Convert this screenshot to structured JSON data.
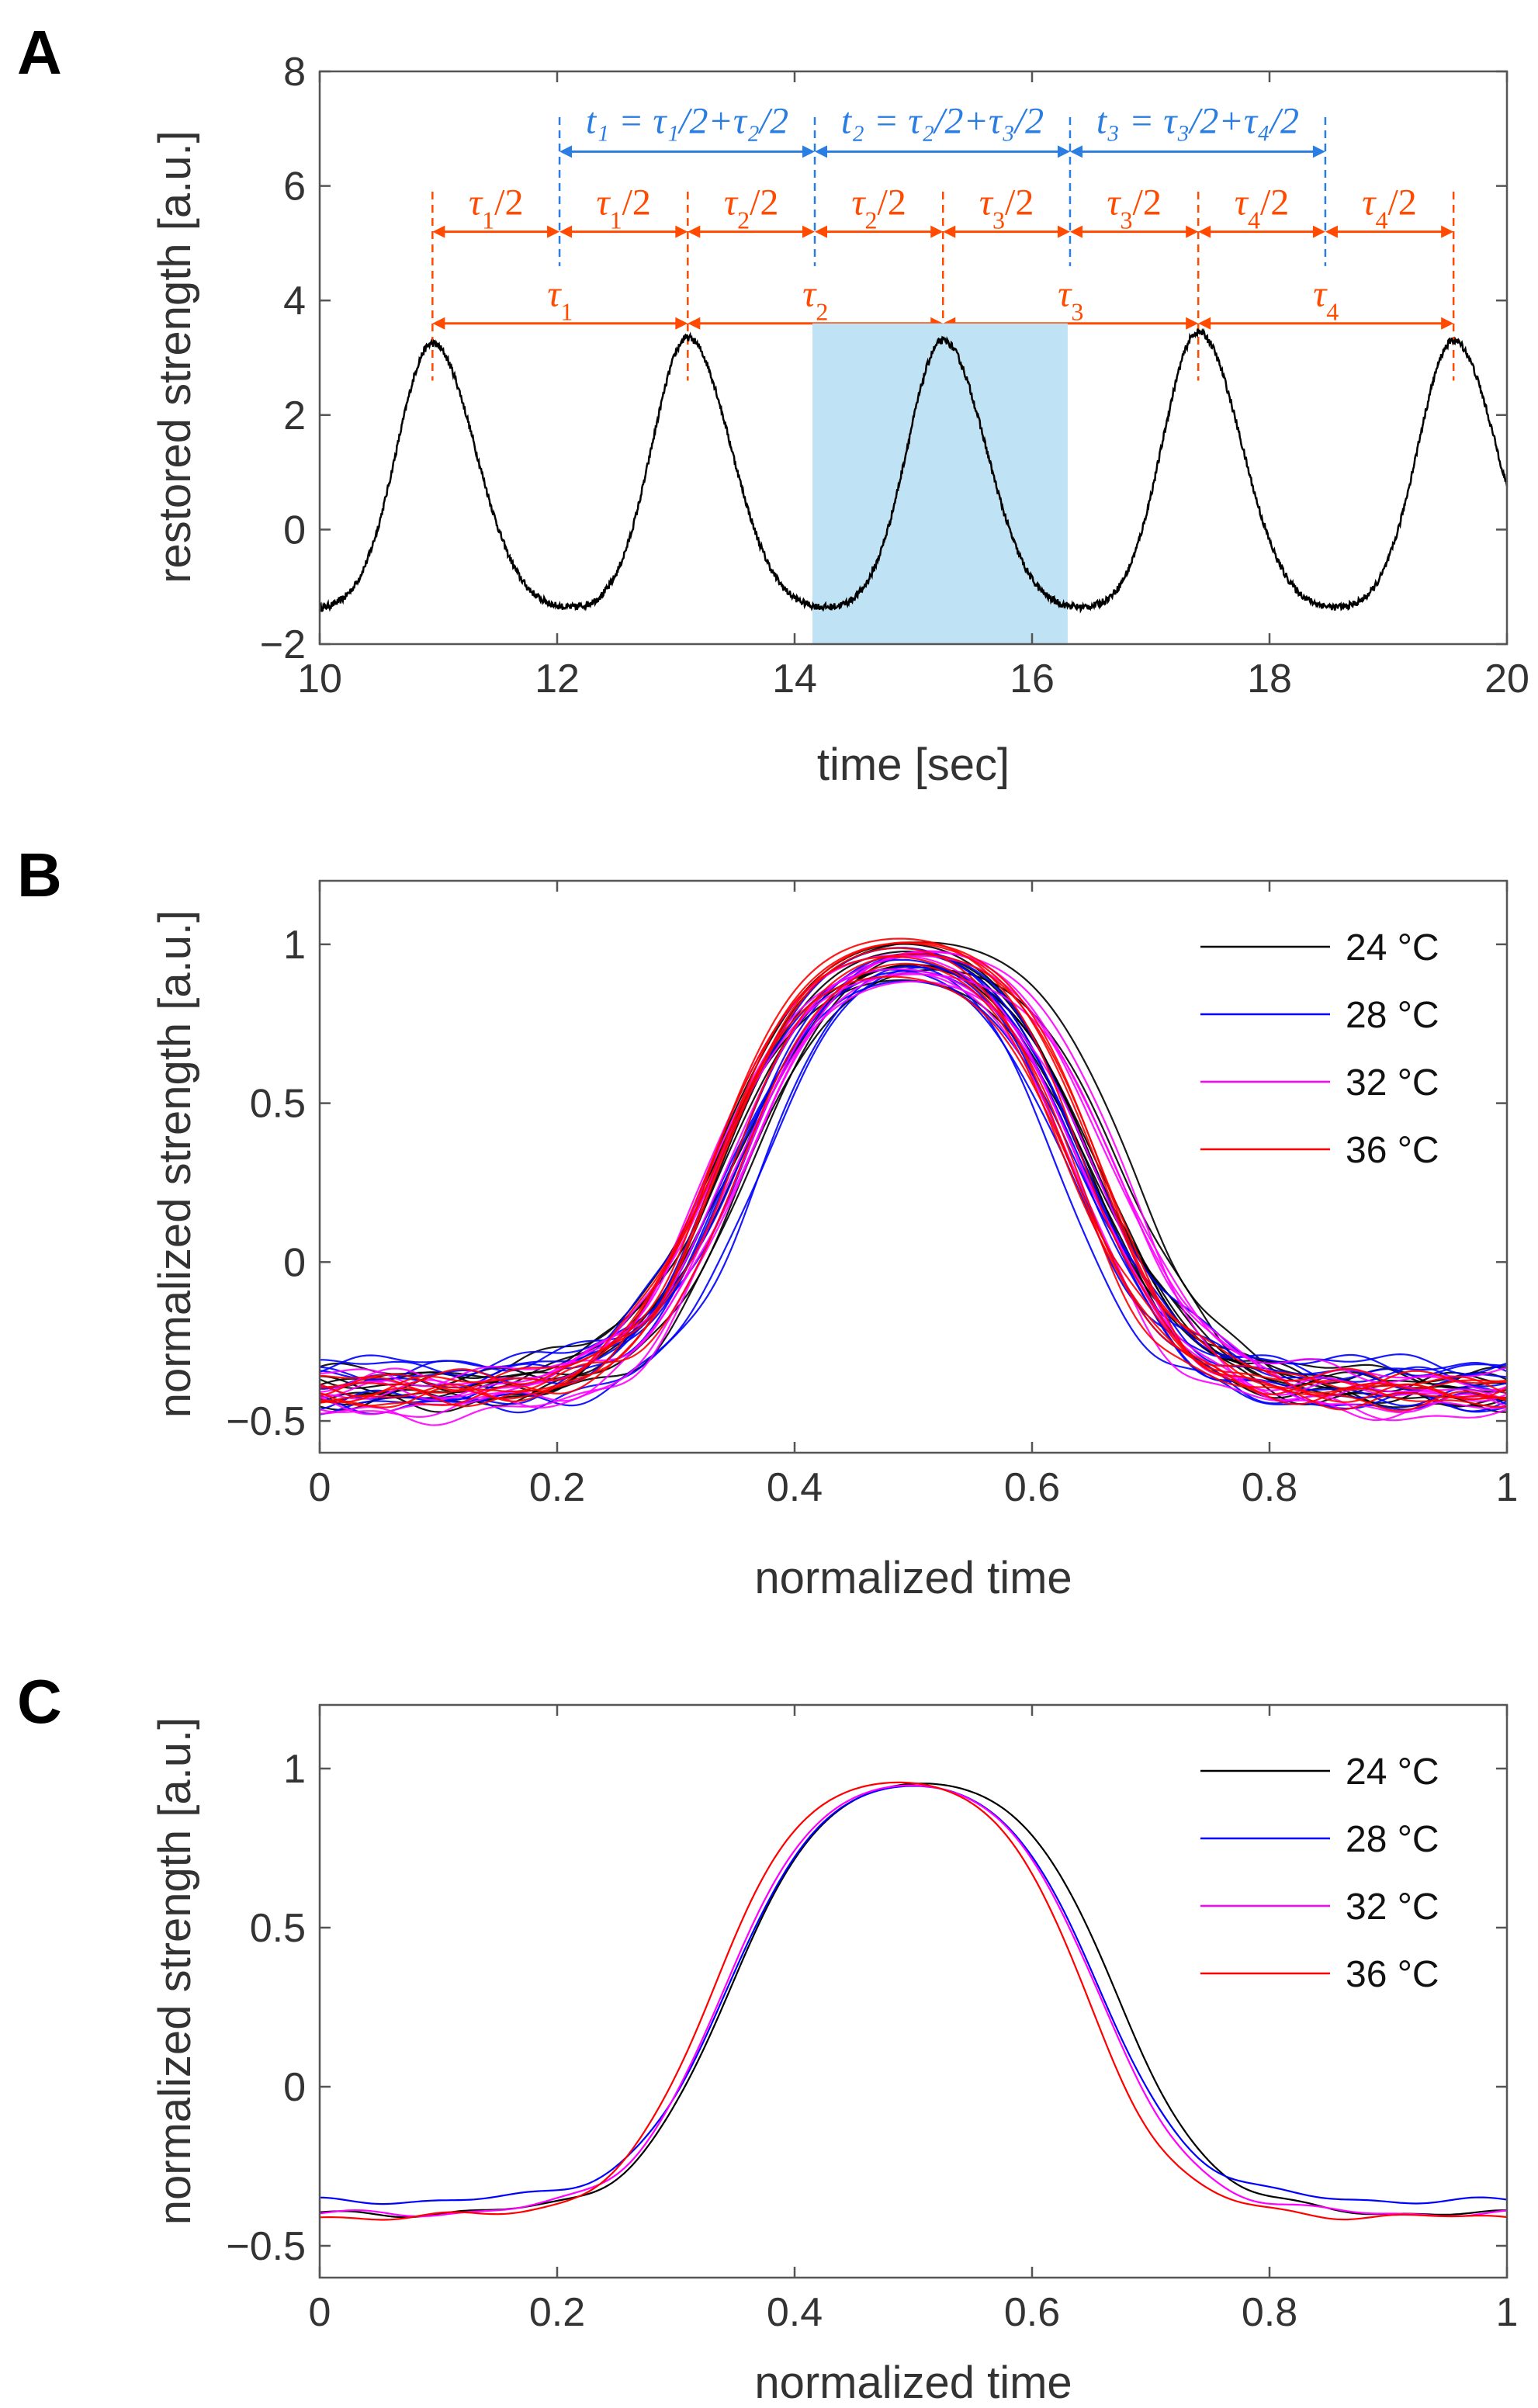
{
  "panel_labels": [
    "A",
    "B",
    "C"
  ],
  "colors": {
    "axis": "#555555",
    "signal": "#000000",
    "shade": "#bfe3f5",
    "orange": "#ff4a00",
    "blue": "#2a7de1",
    "series_24": "#000000",
    "series_28": "#0000ff",
    "series_32": "#ff00ff",
    "series_36": "#ff0000"
  },
  "chart_data": [
    {
      "panel": "A",
      "type": "line",
      "xlabel": "time [sec]",
      "ylabel": "restored strength [a.u.]",
      "xlim": [
        10,
        20
      ],
      "ylim": [
        -2,
        8
      ],
      "xticks": [
        10,
        12,
        14,
        16,
        18,
        20
      ],
      "yticks": [
        -2,
        0,
        2,
        4,
        6,
        8
      ],
      "baseline": -1.4,
      "peaks": [
        {
          "t": 10.95,
          "amp": 3.25
        },
        {
          "t": 13.1,
          "amp": 3.35
        },
        {
          "t": 15.25,
          "amp": 3.3
        },
        {
          "t": 17.4,
          "amp": 3.45
        },
        {
          "t": 19.55,
          "amp": 3.3
        }
      ],
      "shaded_region": {
        "x": [
          14.15,
          16.3
        ],
        "y": [
          -2,
          3.6
        ]
      },
      "tau_half_bars": {
        "y": 5.2,
        "marks": [
          10.95,
          12.02,
          13.1,
          14.17,
          15.25,
          16.32,
          17.4,
          18.47,
          19.55
        ],
        "labels": [
          {
            "sym": "τ",
            "sub": "1",
            "suffix": "/2"
          },
          {
            "sym": "τ",
            "sub": "1",
            "suffix": "/2"
          },
          {
            "sym": "τ",
            "sub": "2",
            "suffix": "/2"
          },
          {
            "sym": "τ",
            "sub": "2",
            "suffix": "/2"
          },
          {
            "sym": "τ",
            "sub": "3",
            "suffix": "/2"
          },
          {
            "sym": "τ",
            "sub": "3",
            "suffix": "/2"
          },
          {
            "sym": "τ",
            "sub": "4",
            "suffix": "/2"
          },
          {
            "sym": "τ",
            "sub": "4",
            "suffix": "/2"
          }
        ]
      },
      "tau_bars": {
        "y": 3.6,
        "marks": [
          10.95,
          13.1,
          15.25,
          17.4,
          19.55
        ],
        "labels": [
          {
            "sym": "τ",
            "sub": "1"
          },
          {
            "sym": "τ",
            "sub": "2"
          },
          {
            "sym": "τ",
            "sub": "3"
          },
          {
            "sym": "τ",
            "sub": "4"
          }
        ]
      },
      "t_bars": {
        "y": 6.6,
        "marks": [
          12.02,
          14.17,
          16.32,
          18.47
        ],
        "labels": [
          "t₁ = τ₁/2+τ₂/2",
          "t₂ = τ₂/2+τ₃/2",
          "t₃ = τ₃/2+τ₄/2"
        ]
      }
    },
    {
      "panel": "B",
      "type": "line",
      "xlabel": "normalized time",
      "ylabel": "normalized strength [a.u.]",
      "xlim": [
        0,
        1
      ],
      "ylim": [
        -0.6,
        1.2
      ],
      "xticks": [
        0,
        0.2,
        0.4,
        0.6,
        0.8,
        1
      ],
      "xtick_labels": [
        "0",
        "0.2",
        "0.4",
        "0.6",
        "0.8",
        "1"
      ],
      "yticks": [
        -0.5,
        0,
        0.5,
        1
      ],
      "ytick_labels": [
        "−0.5",
        "0",
        "0.5",
        "1"
      ],
      "legend": [
        "24 °C",
        "28 °C",
        "32 °C",
        "36 °C"
      ],
      "legend_position": "top-right",
      "series": [
        {
          "name": "24 °C",
          "traces": 9,
          "rise": 0.345,
          "fall": 0.665,
          "width": 0.042,
          "base": -0.4
        },
        {
          "name": "28 °C",
          "traces": 9,
          "rise": 0.355,
          "fall": 0.645,
          "width": 0.04,
          "base": -0.38
        },
        {
          "name": "32 °C",
          "traces": 8,
          "rise": 0.345,
          "fall": 0.655,
          "width": 0.04,
          "base": -0.42
        },
        {
          "name": "36 °C",
          "traces": 8,
          "rise": 0.335,
          "fall": 0.648,
          "width": 0.038,
          "base": -0.42
        }
      ]
    },
    {
      "panel": "C",
      "type": "line",
      "xlabel": "normalized time",
      "ylabel": "normalized strength [a.u.]",
      "xlim": [
        0,
        1
      ],
      "ylim": [
        -0.6,
        1.2
      ],
      "xticks": [
        0,
        0.2,
        0.4,
        0.6,
        0.8,
        1
      ],
      "xtick_labels": [
        "0",
        "0.2",
        "0.4",
        "0.6",
        "0.8",
        "1"
      ],
      "yticks": [
        -0.5,
        0,
        0.5,
        1
      ],
      "ytick_labels": [
        "−0.5",
        "0",
        "0.5",
        "1"
      ],
      "legend": [
        "24 °C",
        "28 °C",
        "32 °C",
        "36 °C"
      ],
      "legend_position": "top-right",
      "series": [
        {
          "name": "24 °C",
          "peak": 0.5,
          "rise": 0.345,
          "fall": 0.67,
          "width": 0.04,
          "base": -0.4
        },
        {
          "name": "28 °C",
          "peak": 0.5,
          "rise": 0.345,
          "fall": 0.655,
          "width": 0.04,
          "base": -0.36
        },
        {
          "name": "32 °C",
          "peak": 0.5,
          "rise": 0.34,
          "fall": 0.655,
          "width": 0.04,
          "base": -0.4
        },
        {
          "name": "36 °C",
          "peak": 0.5,
          "rise": 0.33,
          "fall": 0.645,
          "width": 0.038,
          "base": -0.41
        }
      ]
    }
  ]
}
